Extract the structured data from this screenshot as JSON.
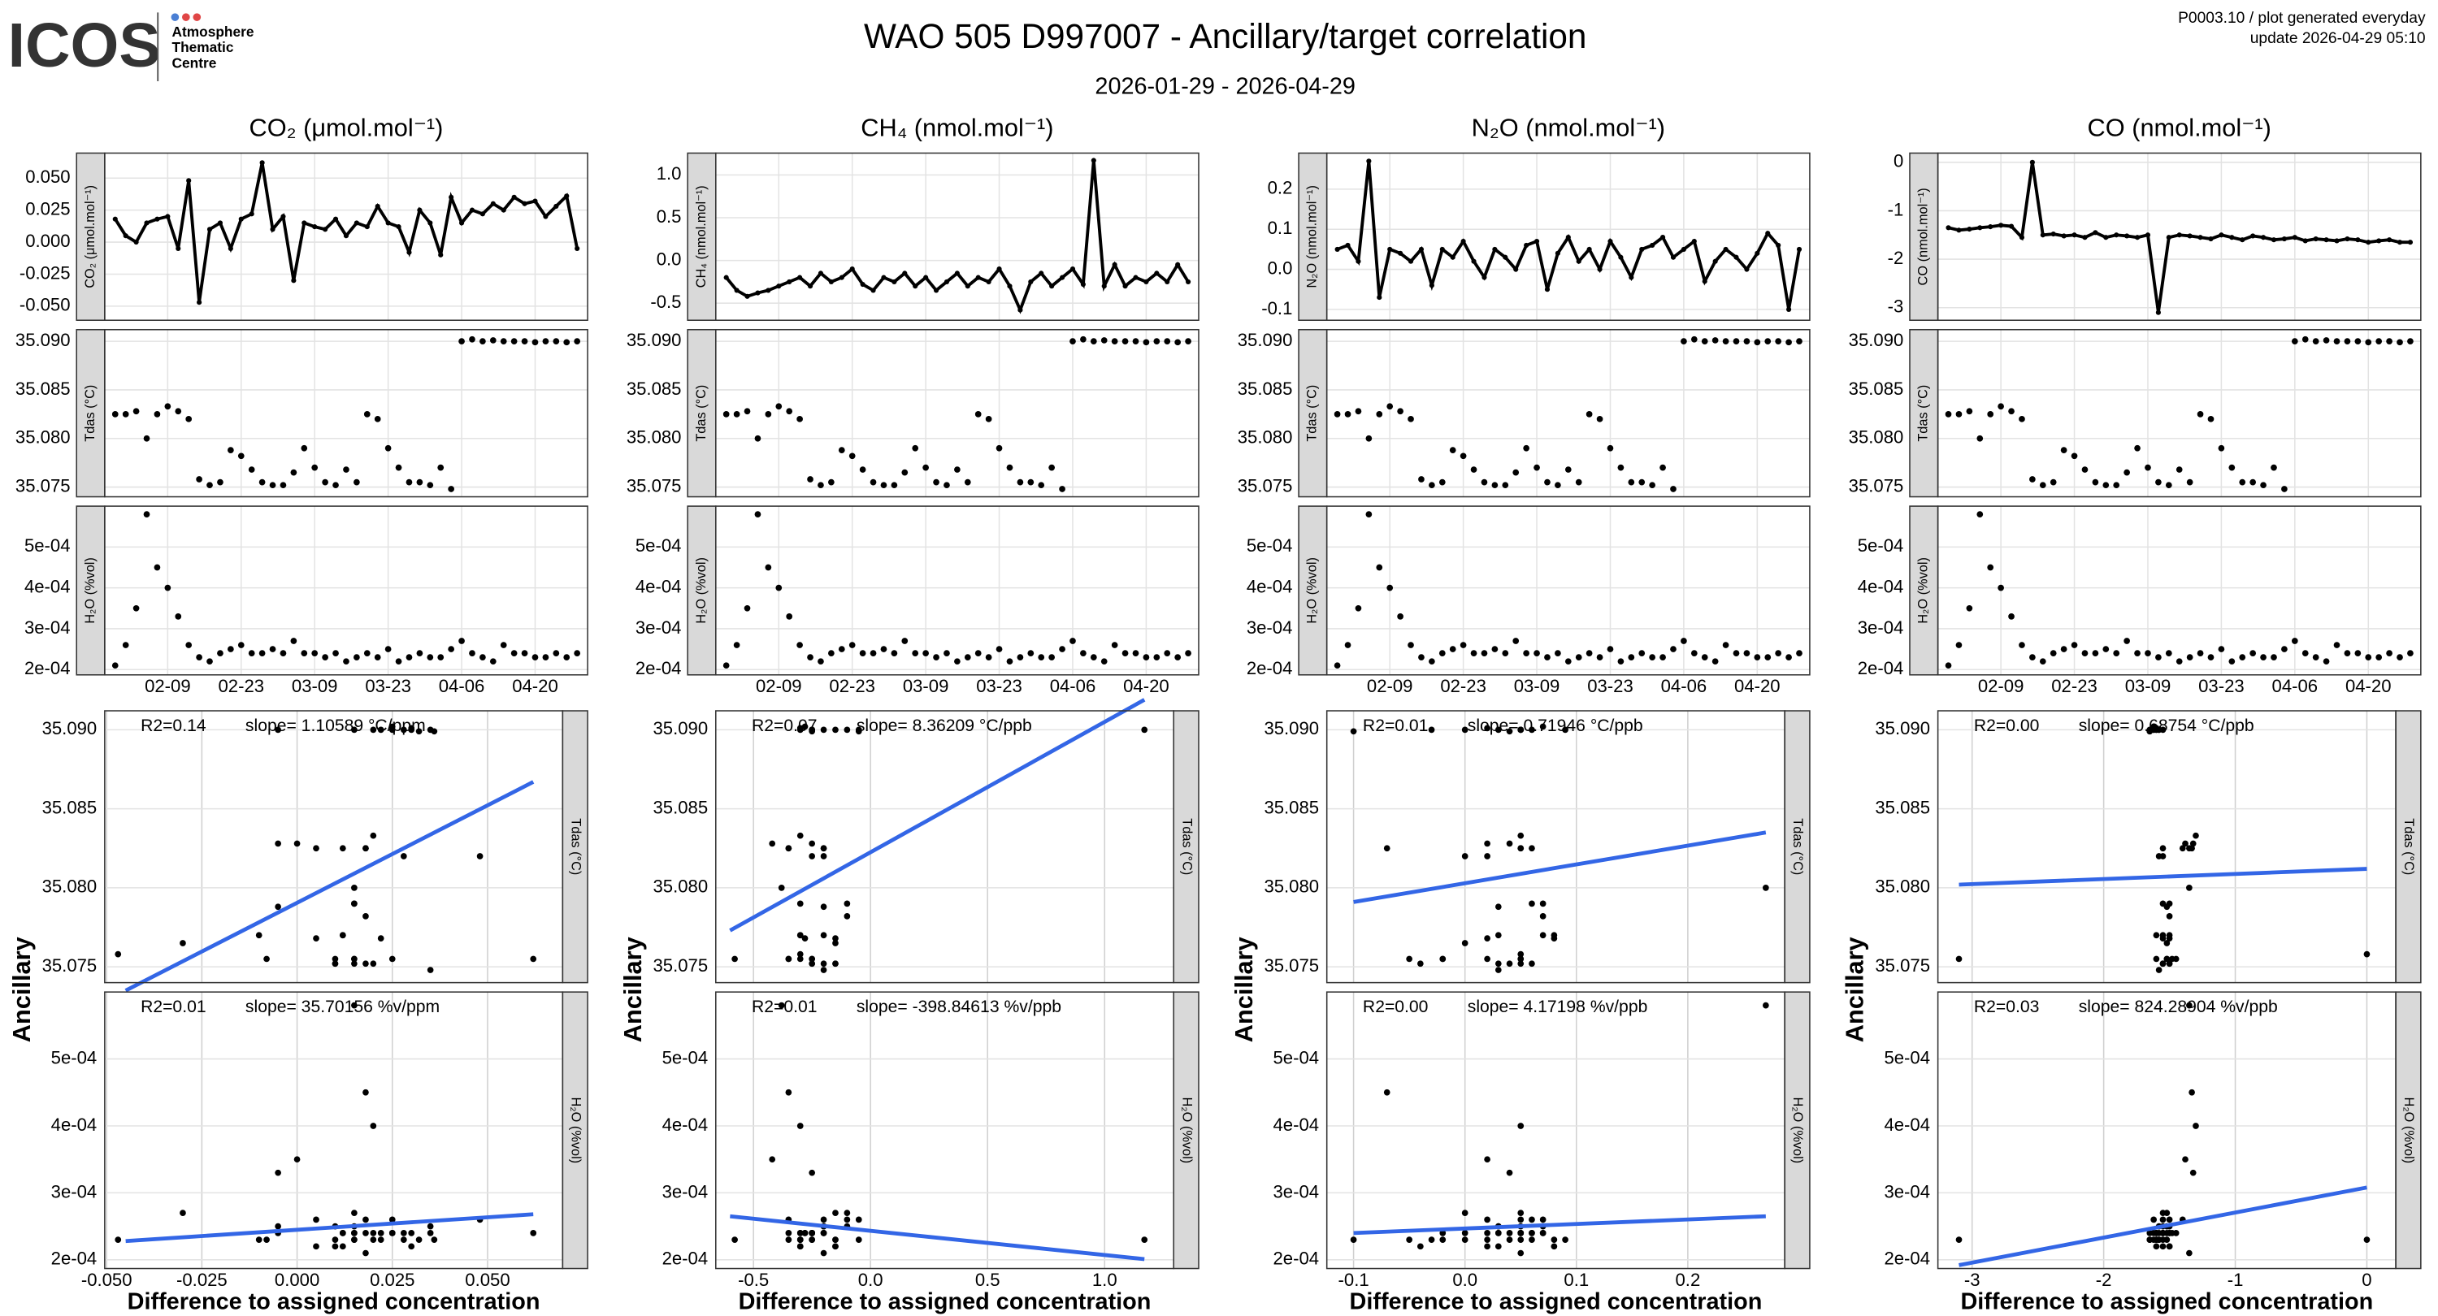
{
  "logo": {
    "name": "ICOS",
    "lines": [
      "Atmosphere",
      "Thematic",
      "Centre"
    ]
  },
  "meta": {
    "line1": "P0003.10 / plot generated everyday",
    "line2": "update  2026-04-29 05:10"
  },
  "chart_data": {
    "type": "ancillary-panels",
    "title": "WAO 505 D997007 - Ancillary/target correlation",
    "subtitle": "2026-01-29 - 2026-04-29",
    "ylabel": "Ancillary",
    "xlabel": "Difference to assigned concentration",
    "x": [
      "2026-01-30",
      "2026-02-01",
      "2026-02-03",
      "2026-02-05",
      "2026-02-07",
      "2026-02-09",
      "2026-02-11",
      "2026-02-13",
      "2026-02-15",
      "2026-02-17",
      "2026-02-19",
      "2026-02-21",
      "2026-02-23",
      "2026-02-25",
      "2026-02-27",
      "2026-03-01",
      "2026-03-03",
      "2026-03-05",
      "2026-03-07",
      "2026-03-09",
      "2026-03-11",
      "2026-03-13",
      "2026-03-15",
      "2026-03-17",
      "2026-03-19",
      "2026-03-21",
      "2026-03-23",
      "2026-03-25",
      "2026-03-27",
      "2026-03-29",
      "2026-03-31",
      "2026-04-02",
      "2026-04-04",
      "2026-04-06",
      "2026-04-08",
      "2026-04-10",
      "2026-04-12",
      "2026-04-14",
      "2026-04-16",
      "2026-04-18",
      "2026-04-20",
      "2026-04-22",
      "2026-04-24",
      "2026-04-26",
      "2026-04-28"
    ],
    "xlim": [
      "2026-01-28",
      "2026-04-30"
    ],
    "xticks": [
      {
        "value": "2026-02-09",
        "label": "02-09"
      },
      {
        "value": "2026-02-23",
        "label": "02-23"
      },
      {
        "value": "2026-03-09",
        "label": "03-09"
      },
      {
        "value": "2026-03-23",
        "label": "03-23"
      },
      {
        "value": "2026-04-06",
        "label": "04-06"
      },
      {
        "value": "2026-04-20",
        "label": "04-20"
      }
    ],
    "tdas": {
      "strip_label": "Tdas (°C)",
      "ylim": [
        35.074,
        35.0912
      ],
      "yticks": [
        35.075,
        {
          "value": 35.08,
          "label": "35.080"
        },
        35.085,
        {
          "value": 35.09,
          "label": "35.090"
        }
      ],
      "values": [
        35.0825,
        35.0825,
        35.0828,
        35.08,
        35.0825,
        35.0833,
        35.0828,
        35.082,
        35.0758,
        35.0752,
        35.0755,
        35.0788,
        35.0782,
        35.0768,
        35.0755,
        35.0752,
        35.0752,
        35.0765,
        35.079,
        35.077,
        35.0755,
        35.0752,
        35.0768,
        35.0755,
        35.0825,
        35.082,
        35.079,
        35.077,
        35.0755,
        35.0755,
        35.0752,
        35.077,
        35.0748,
        35.09,
        35.0902,
        35.09,
        35.0901,
        35.09,
        35.09,
        35.09,
        35.0899,
        35.09,
        35.09,
        35.0899,
        35.09
      ]
    },
    "h2o": {
      "strip_label": "H₂O (%vol)",
      "ylim": [
        0.000187,
        0.0006
      ],
      "yticks": [
        {
          "value": 0.0002,
          "label": "2e-04"
        },
        {
          "value": 0.0003,
          "label": "3e-04"
        },
        {
          "value": 0.0004,
          "label": "4e-04"
        },
        {
          "value": 0.0005,
          "label": "5e-04"
        }
      ],
      "values": [
        0.00021,
        0.00026,
        0.00035,
        0.00058,
        0.00045,
        0.0004,
        0.00033,
        0.00026,
        0.00023,
        0.00022,
        0.00024,
        0.00025,
        0.00026,
        0.00024,
        0.00024,
        0.00025,
        0.00024,
        0.00027,
        0.00024,
        0.00024,
        0.00023,
        0.00024,
        0.00022,
        0.00023,
        0.00024,
        0.00023,
        0.00025,
        0.00022,
        0.00023,
        0.00024,
        0.00023,
        0.00023,
        0.00025,
        0.00027,
        0.00024,
        0.00023,
        0.00022,
        0.00026,
        0.00024,
        0.00024,
        0.00023,
        0.00023,
        0.00024,
        0.00023,
        0.00024
      ]
    },
    "gases": [
      {
        "title": "CO₂ (μmol.mol⁻¹)",
        "strip_label": "CO₂ (μmol.mol⁻¹)",
        "ylim": [
          -0.061,
          0.0695
        ],
        "yticks": [
          {
            "value": -0.05,
            "label": "-0.050"
          },
          -0.025,
          {
            "value": 0,
            "label": "0.000"
          },
          0.025,
          {
            "value": 0.05,
            "label": "0.050"
          }
        ],
        "xlim": [
          -0.0505,
          0.0697
        ],
        "xticks": [
          {
            "value": -0.05,
            "label": "-0.050"
          },
          -0.025,
          {
            "value": 0,
            "label": "0.000"
          },
          0.025,
          {
            "value": 0.05,
            "label": "0.050"
          }
        ],
        "values": [
          0.018,
          0.005,
          0.0,
          0.015,
          0.018,
          0.02,
          -0.005,
          0.048,
          -0.047,
          0.01,
          0.015,
          -0.005,
          0.018,
          0.022,
          0.062,
          0.01,
          0.02,
          -0.03,
          0.015,
          0.012,
          0.01,
          0.018,
          0.005,
          0.015,
          0.012,
          0.028,
          0.015,
          0.012,
          -0.008,
          0.025,
          0.015,
          -0.01,
          0.035,
          0.015,
          0.025,
          0.022,
          0.03,
          0.025,
          0.035,
          0.03,
          0.032,
          0.02,
          0.028,
          0.036,
          -0.005
        ],
        "tdas_fit": {
          "r2": "R2=0.14",
          "slope": "slope= 1.10589 °C/ppm",
          "line_x": [
            -0.045,
            0.062
          ],
          "line_y": [
            35.0735,
            35.0867
          ]
        },
        "h2o_fit": {
          "r2": "R2=0.01",
          "slope": "slope= 35.70156 %v/ppm",
          "line_x": [
            -0.045,
            0.062
          ],
          "line_y": [
            0.000228,
            0.000268
          ]
        }
      },
      {
        "title": "CH₄ (nmol.mol⁻¹)",
        "strip_label": "CH₄ (nmol.mol⁻¹)",
        "ylim": [
          -0.7,
          1.256
        ],
        "yticks": [
          -0.5,
          {
            "value": 0,
            "label": "0.0"
          },
          0.5,
          {
            "value": 1,
            "label": "1.0"
          }
        ],
        "xlim": [
          -0.661,
          1.295
        ],
        "xticks": [
          -0.5,
          {
            "value": 0,
            "label": "0.0"
          },
          0.5,
          {
            "value": 1,
            "label": "1.0"
          }
        ],
        "values": [
          -0.2,
          -0.35,
          -0.42,
          -0.38,
          -0.35,
          -0.3,
          -0.25,
          -0.2,
          -0.3,
          -0.15,
          -0.25,
          -0.2,
          -0.1,
          -0.28,
          -0.35,
          -0.2,
          -0.25,
          -0.15,
          -0.3,
          -0.2,
          -0.35,
          -0.25,
          -0.15,
          -0.3,
          -0.2,
          -0.25,
          -0.1,
          -0.3,
          -0.58,
          -0.25,
          -0.15,
          -0.3,
          -0.2,
          -0.1,
          -0.28,
          1.17,
          -0.3,
          -0.05,
          -0.3,
          -0.2,
          -0.25,
          -0.15,
          -0.25,
          -0.05,
          -0.25
        ],
        "tdas_fit": {
          "r2": "R2=0.07",
          "slope": "slope= 8.36209 °C/ppb",
          "line_x": [
            -0.6,
            1.17
          ],
          "line_y": [
            35.0773,
            35.0919
          ]
        },
        "h2o_fit": {
          "r2": "R2=0.01",
          "slope": "slope= -398.84613 %v/ppb",
          "line_x": [
            -0.6,
            1.17
          ],
          "line_y": [
            0.000265,
            0.000201
          ]
        }
      },
      {
        "title": "N₂O (nmol.mol⁻¹)",
        "strip_label": "N₂O (nmol.mol⁻¹)",
        "ylim": [
          -0.127,
          0.29
        ],
        "yticks": [
          -0.1,
          {
            "value": 0,
            "label": "0.0"
          },
          0.1,
          0.2
        ],
        "xlim": [
          -0.124,
          0.287
        ],
        "xticks": [
          -0.1,
          {
            "value": 0,
            "label": "0.0"
          },
          0.1,
          0.2
        ],
        "values": [
          0.05,
          0.06,
          0.02,
          0.27,
          -0.07,
          0.05,
          0.04,
          0.02,
          0.05,
          -0.04,
          0.05,
          0.03,
          0.07,
          0.02,
          -0.02,
          0.05,
          0.03,
          0.0,
          0.06,
          0.07,
          -0.05,
          0.04,
          0.08,
          0.02,
          0.05,
          0.0,
          0.07,
          0.03,
          -0.02,
          0.05,
          0.06,
          0.08,
          0.03,
          0.05,
          0.07,
          -0.03,
          0.02,
          0.05,
          0.03,
          0.0,
          0.04,
          0.09,
          0.06,
          -0.1,
          0.05
        ],
        "tdas_fit": {
          "r2": "R2=0.01",
          "slope": "slope= 0.71946 °C/ppb",
          "line_x": [
            -0.1,
            0.27
          ],
          "line_y": [
            35.0791,
            35.0835
          ]
        },
        "h2o_fit": {
          "r2": "R2=0.00",
          "slope": "slope= 4.17198 %v/ppb",
          "line_x": [
            -0.1,
            0.27
          ],
          "line_y": [
            0.00024,
            0.000265
          ]
        }
      },
      {
        "title": "CO (nmol.mol⁻¹)",
        "strip_label": "CO (nmol.mol⁻¹)",
        "ylim": [
          -3.26,
          0.19
        ],
        "yticks": [
          -3,
          -2,
          -1,
          0
        ],
        "xlim": [
          -3.26,
          0.22
        ],
        "xticks": [
          -3,
          -2,
          -1,
          0
        ],
        "values": [
          -1.35,
          -1.4,
          -1.38,
          -1.35,
          -1.33,
          -1.3,
          -1.32,
          -1.55,
          0.0,
          -1.5,
          -1.48,
          -1.52,
          -1.5,
          -1.55,
          -1.45,
          -1.55,
          -1.5,
          -1.52,
          -1.55,
          -1.5,
          -3.1,
          -1.55,
          -1.5,
          -1.52,
          -1.55,
          -1.58,
          -1.5,
          -1.55,
          -1.6,
          -1.52,
          -1.55,
          -1.6,
          -1.58,
          -1.55,
          -1.62,
          -1.58,
          -1.6,
          -1.62,
          -1.58,
          -1.6,
          -1.65,
          -1.62,
          -1.6,
          -1.65,
          -1.65
        ],
        "tdas_fit": {
          "r2": "R2=0.00",
          "slope": "slope= 0.68754 °C/ppb",
          "line_x": [
            -3.1,
            0.0
          ],
          "line_y": [
            35.0802,
            35.0812
          ]
        },
        "h2o_fit": {
          "r2": "R2=0.03",
          "slope": "slope= 824.28904 %v/ppb",
          "line_x": [
            -3.1,
            0.0
          ],
          "line_y": [
            0.000192,
            0.000308
          ]
        }
      }
    ]
  }
}
